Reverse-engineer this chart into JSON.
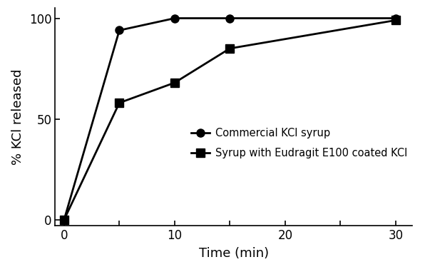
{
  "series1_label": "Commercial KCl syrup",
  "series2_label": "Syrup with Eudragit E100 coated KCl",
  "series1_x": [
    0,
    5,
    10,
    15,
    30
  ],
  "series1_y": [
    0,
    94,
    100,
    100,
    100
  ],
  "series2_x": [
    0,
    5,
    10,
    15,
    30
  ],
  "series2_y": [
    0,
    58,
    68,
    85,
    99
  ],
  "xlabel": "Time (min)",
  "ylabel": "% KCl released",
  "xlim": [
    -0.8,
    31.5
  ],
  "ylim": [
    -3,
    105
  ],
  "xticks": [
    0,
    10,
    20,
    30
  ],
  "xticks_minor": [
    5,
    15,
    25
  ],
  "yticks": [
    0,
    50,
    100
  ],
  "line_color": "#000000",
  "marker_circle": "o",
  "marker_square": "s",
  "marker_size": 8,
  "linewidth": 2.0,
  "background_color": "#ffffff",
  "legend_fontsize": 10.5,
  "axis_fontsize": 13,
  "tick_fontsize": 12
}
